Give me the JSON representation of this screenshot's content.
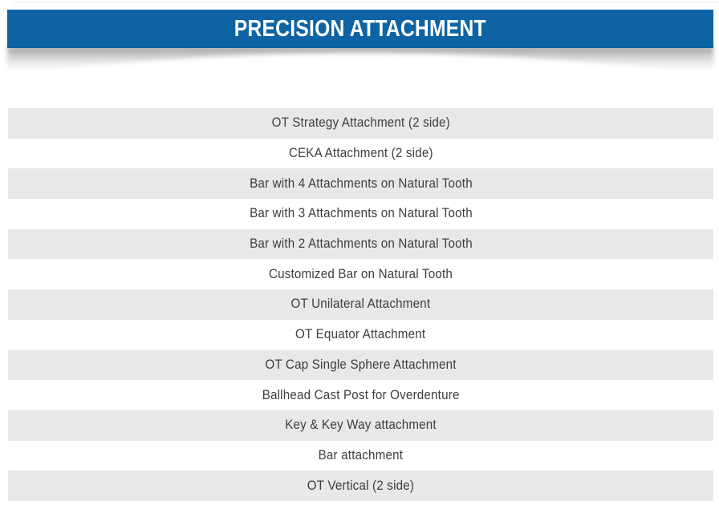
{
  "header": {
    "title": "PRECISION ATTACHMENT"
  },
  "list": {
    "items": [
      "OT Strategy Attachment (2 side)",
      "CEKA Attachment (2 side)",
      "Bar with 4 Attachments on Natural Tooth",
      "Bar with 3 Attachments on Natural Tooth",
      "Bar with 2 Attachments on Natural Tooth",
      "Customized Bar on Natural Tooth",
      "OT Unilateral Attachment",
      "OT Equator Attachment",
      "OT Cap Single Sphere Attachment",
      "Ballhead Cast Post for Overdenture",
      "Key & Key Way attachment",
      "Bar attachment",
      "OT Vertical (2 side)"
    ]
  },
  "colors": {
    "page_bg": "#ffffff",
    "header_bg": "#0e63a5",
    "header_text": "#ffffff",
    "row_stripe": "#e7e8e9",
    "row_text": "#3e3e3e"
  }
}
